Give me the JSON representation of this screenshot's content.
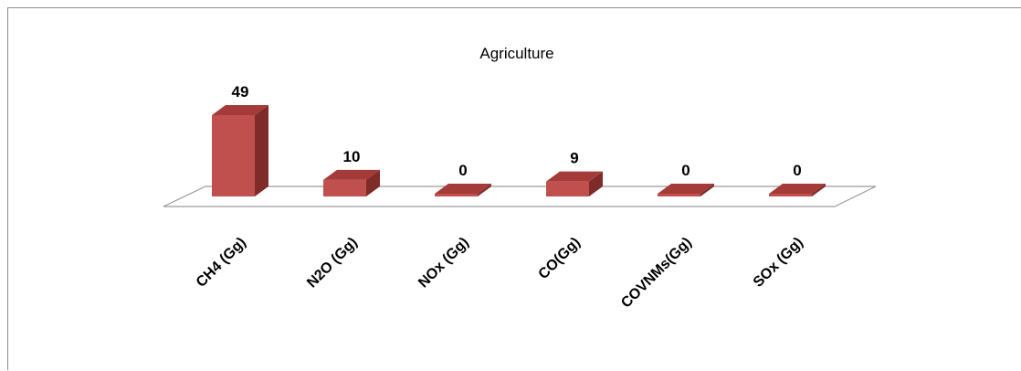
{
  "chart_data": {
    "type": "bar",
    "style": "3d-column",
    "title": "Agriculture",
    "categories": [
      "CH4 (Gg)",
      "N2O (Gg)",
      "NOx (Gg)",
      "CO(Gg)",
      "COVNMs(Gg)",
      "SOx (Gg)"
    ],
    "series": [
      {
        "values": [
          49,
          10,
          0,
          9,
          0,
          0
        ]
      }
    ],
    "data_labels": [
      "49",
      "10",
      "0",
      "9",
      "0",
      "0"
    ],
    "xlabel": "",
    "ylabel": "",
    "ylim": [
      0,
      49
    ],
    "grid": false,
    "legend": "none",
    "colors": {
      "bar_front": "#c0504d",
      "bar_top": "#a43b38",
      "bar_side": "#7f2b29",
      "floor_stroke": "#9a9a9a",
      "frame": "#8c8c8c"
    }
  }
}
